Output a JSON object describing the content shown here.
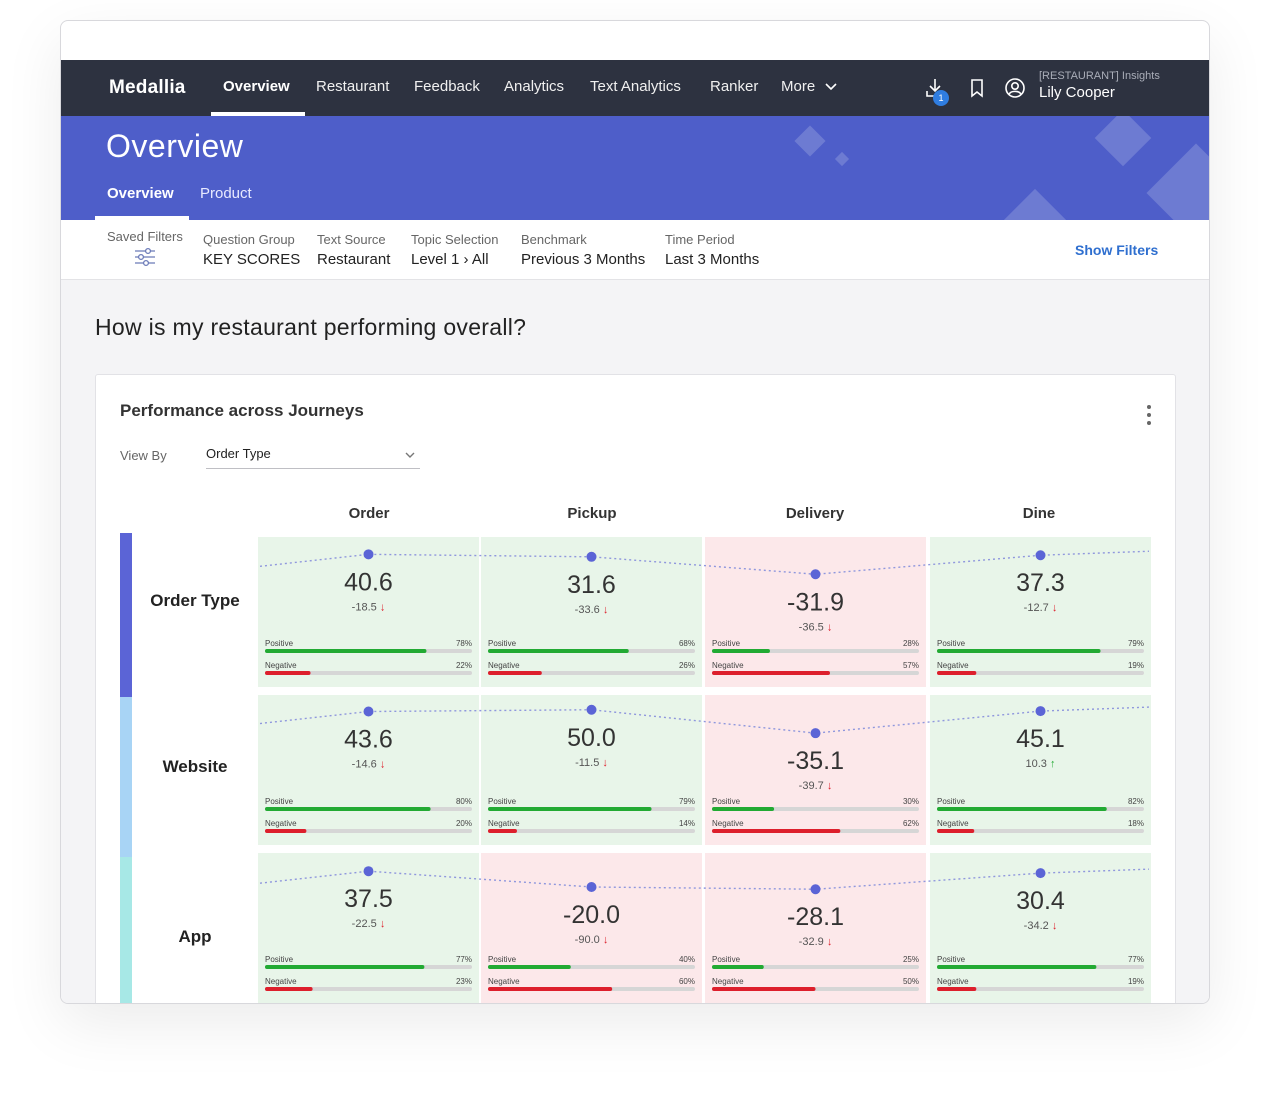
{
  "app": {
    "brand": "Medallia"
  },
  "nav": {
    "items": [
      "Overview",
      "Restaurant",
      "Feedback",
      "Analytics",
      "Text Analytics",
      "Ranker",
      "More"
    ],
    "active": "Overview",
    "download_badge": "1"
  },
  "user": {
    "subtitle": "[RESTAURANT] Insights",
    "name": "Lily Cooper"
  },
  "banner": {
    "title": "Overview",
    "tabs": [
      "Overview",
      "Product"
    ],
    "active_tab": "Overview"
  },
  "filters": {
    "saved_label": "Saved Filters",
    "items": [
      {
        "label": "Question Group",
        "value": "KEY SCORES"
      },
      {
        "label": "Text Source",
        "value": "Restaurant"
      },
      {
        "label": "Topic Selection",
        "value": "Level 1 › All"
      },
      {
        "label": "Benchmark",
        "value": "Previous 3 Months"
      },
      {
        "label": "Time Period",
        "value": "Last 3 Months"
      }
    ],
    "show_filters": "Show Filters"
  },
  "main": {
    "question": "How is my restaurant performing overall?"
  },
  "card": {
    "title": "Performance across Journeys",
    "view_by_label": "View By",
    "view_by_value": "Order Type"
  },
  "colors": {
    "positive_bg": "#e8f5e9",
    "negative_bg": "#fce8ea",
    "positive_bar": "#22aa33",
    "negative_bar": "#dd1f2c",
    "track": "#d6d6d6",
    "dot": "#5b64d6",
    "row_colors": [
      "#5b64d6",
      "#a8d4f5",
      "#a7e8e6"
    ]
  },
  "chart_data": {
    "type": "table",
    "columns": [
      "Order",
      "Pickup",
      "Delivery",
      "Dine"
    ],
    "rows": [
      {
        "name": "Order Type",
        "cells": [
          {
            "score": "40.6",
            "change": "-18.5",
            "dir": "down",
            "positive": 78,
            "negative": 22
          },
          {
            "score": "31.6",
            "change": "-33.6",
            "dir": "down",
            "positive": 68,
            "negative": 26
          },
          {
            "score": "-31.9",
            "change": "-36.5",
            "dir": "down",
            "positive": 28,
            "negative": 57
          },
          {
            "score": "37.3",
            "change": "-12.7",
            "dir": "down",
            "positive": 79,
            "negative": 19
          }
        ]
      },
      {
        "name": "Website",
        "cells": [
          {
            "score": "43.6",
            "change": "-14.6",
            "dir": "down",
            "positive": 80,
            "negative": 20
          },
          {
            "score": "50.0",
            "change": "-11.5",
            "dir": "down",
            "positive": 79,
            "negative": 14
          },
          {
            "score": "-35.1",
            "change": "-39.7",
            "dir": "down",
            "positive": 30,
            "negative": 62
          },
          {
            "score": "45.1",
            "change": "10.3",
            "dir": "up",
            "positive": 82,
            "negative": 18
          }
        ]
      },
      {
        "name": "App",
        "cells": [
          {
            "score": "37.5",
            "change": "-22.5",
            "dir": "down",
            "positive": 77,
            "negative": 23
          },
          {
            "score": "-20.0",
            "change": "-90.0",
            "dir": "down",
            "positive": 40,
            "negative": 60
          },
          {
            "score": "-28.1",
            "change": "-32.9",
            "dir": "down",
            "positive": 25,
            "negative": 50
          },
          {
            "score": "30.4",
            "change": "-34.2",
            "dir": "down",
            "positive": 77,
            "negative": 19
          }
        ]
      }
    ],
    "bar_labels": {
      "positive": "Positive",
      "negative": "Negative"
    }
  }
}
